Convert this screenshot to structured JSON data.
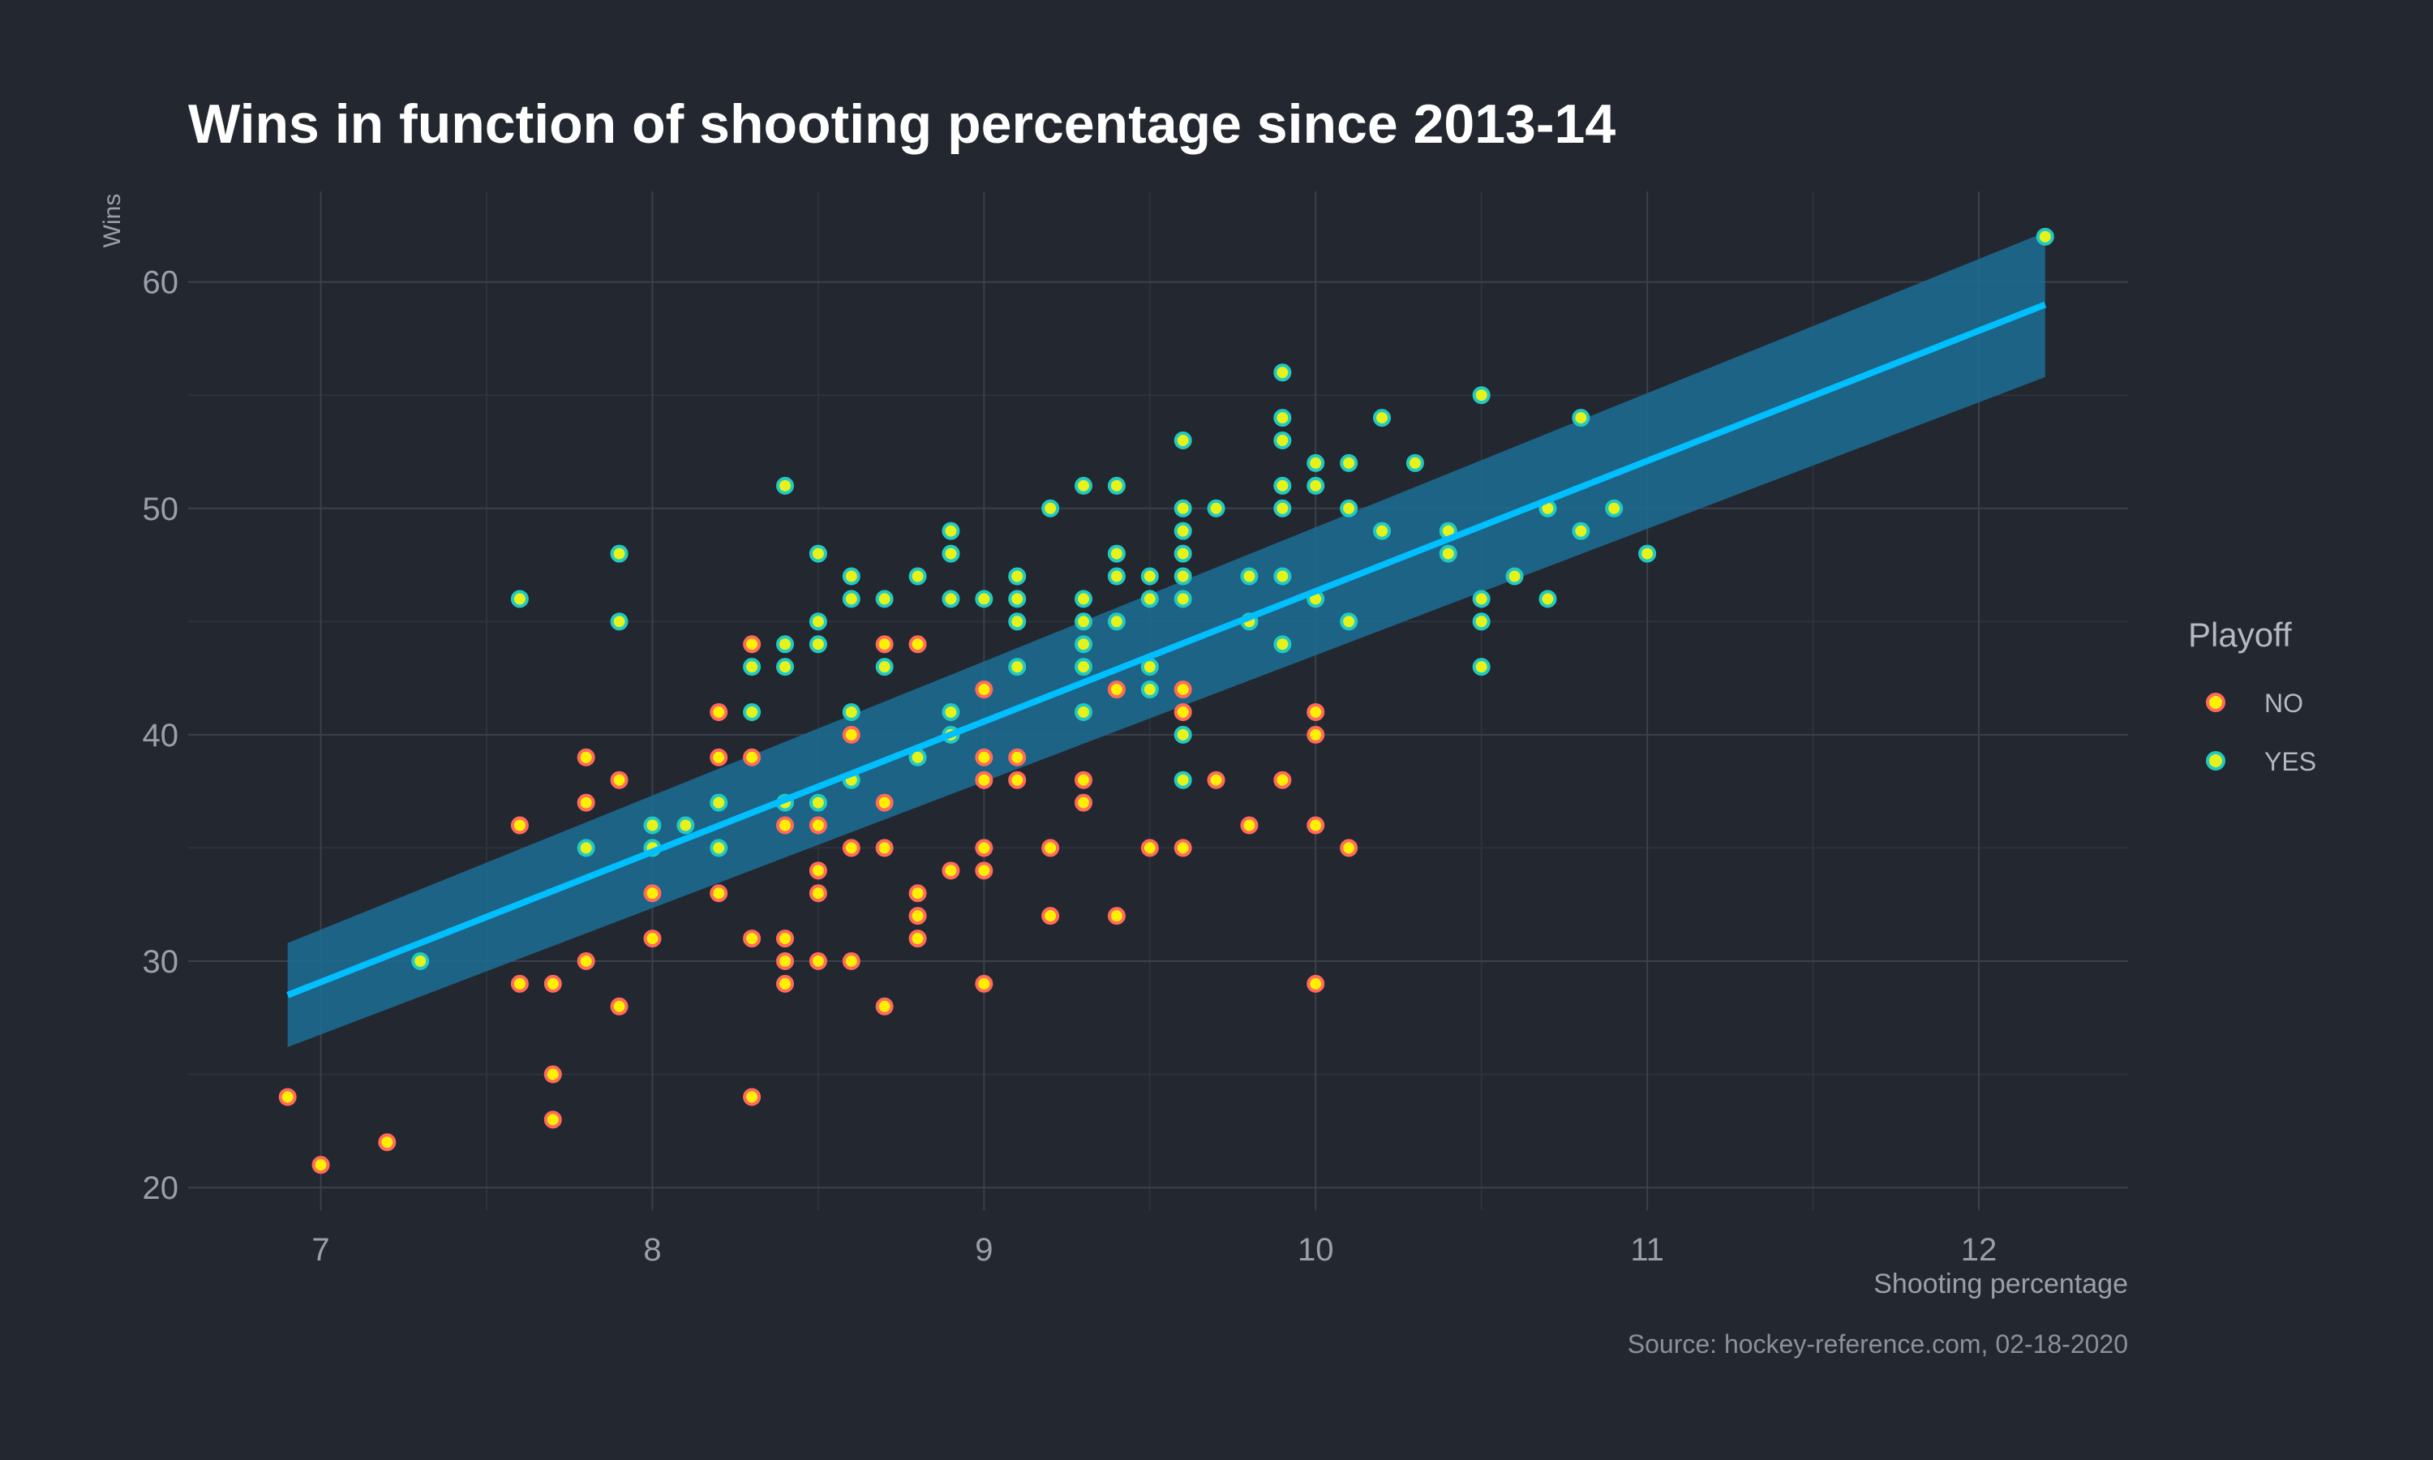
{
  "chart_data": {
    "type": "scatter",
    "title": "Wins in function of shooting percentage since 2013-14",
    "xlabel": "Shooting percentage",
    "ylabel": "Wins",
    "caption": "Source: hockey-reference.com, 02-18-2020",
    "xlim": [
      6.6,
      12.45
    ],
    "ylim": [
      19,
      64
    ],
    "x_ticks": [
      7,
      8,
      9,
      10,
      11,
      12
    ],
    "y_ticks": [
      20,
      30,
      40,
      50,
      60
    ],
    "grid": true,
    "legend": {
      "title": "Playoff",
      "position": "right",
      "entries": [
        "NO",
        "YES"
      ]
    },
    "colors": {
      "background": "#232730",
      "grid_major": "#3b404b",
      "grid_minor": "#2e323c",
      "no_fill": "#ffef00",
      "no_stroke": "#ff6a5c",
      "yes_fill": "#e6f21a",
      "yes_stroke": "#22c9c2",
      "trend_line": "#00bfff",
      "ci_band": "#1b6e94"
    },
    "trend": {
      "x": [
        6.9,
        12.2
      ],
      "y": [
        28.5,
        59.0
      ],
      "ci_lower": [
        26.2,
        55.8
      ],
      "ci_upper": [
        30.8,
        62.2
      ]
    },
    "series": [
      {
        "name": "NO",
        "points": [
          [
            6.9,
            24
          ],
          [
            7.0,
            21
          ],
          [
            7.2,
            22
          ],
          [
            7.6,
            36
          ],
          [
            7.6,
            29
          ],
          [
            7.7,
            29
          ],
          [
            7.7,
            25
          ],
          [
            7.7,
            23
          ],
          [
            7.8,
            39
          ],
          [
            7.8,
            37
          ],
          [
            7.8,
            30
          ],
          [
            7.9,
            38
          ],
          [
            7.9,
            28
          ],
          [
            8.0,
            33
          ],
          [
            8.0,
            31
          ],
          [
            8.2,
            41
          ],
          [
            8.2,
            39
          ],
          [
            8.2,
            33
          ],
          [
            8.3,
            44
          ],
          [
            8.3,
            39
          ],
          [
            8.3,
            31
          ],
          [
            8.3,
            24
          ],
          [
            8.4,
            36
          ],
          [
            8.4,
            31
          ],
          [
            8.4,
            30
          ],
          [
            8.4,
            29
          ],
          [
            8.5,
            36
          ],
          [
            8.5,
            34
          ],
          [
            8.5,
            33
          ],
          [
            8.5,
            30
          ],
          [
            8.6,
            40
          ],
          [
            8.6,
            35
          ],
          [
            8.6,
            30
          ],
          [
            8.7,
            44
          ],
          [
            8.7,
            37
          ],
          [
            8.7,
            35
          ],
          [
            8.7,
            28
          ],
          [
            8.8,
            44
          ],
          [
            8.8,
            33
          ],
          [
            8.8,
            32
          ],
          [
            8.8,
            31
          ],
          [
            8.9,
            34
          ],
          [
            9.0,
            42
          ],
          [
            9.0,
            39
          ],
          [
            9.0,
            38
          ],
          [
            9.0,
            35
          ],
          [
            9.0,
            34
          ],
          [
            9.0,
            29
          ],
          [
            9.1,
            39
          ],
          [
            9.1,
            38
          ],
          [
            9.2,
            35
          ],
          [
            9.2,
            32
          ],
          [
            9.3,
            38
          ],
          [
            9.3,
            37
          ],
          [
            9.4,
            42
          ],
          [
            9.4,
            32
          ],
          [
            9.5,
            35
          ],
          [
            9.6,
            42
          ],
          [
            9.6,
            41
          ],
          [
            9.6,
            35
          ],
          [
            9.7,
            38
          ],
          [
            9.8,
            36
          ],
          [
            9.9,
            38
          ],
          [
            10.0,
            41
          ],
          [
            10.0,
            40
          ],
          [
            10.0,
            36
          ],
          [
            10.0,
            29
          ],
          [
            10.1,
            35
          ]
        ]
      },
      {
        "name": "YES",
        "points": [
          [
            7.3,
            30
          ],
          [
            7.6,
            46
          ],
          [
            7.8,
            35
          ],
          [
            7.9,
            48
          ],
          [
            7.9,
            45
          ],
          [
            8.0,
            36
          ],
          [
            8.0,
            35
          ],
          [
            8.1,
            36
          ],
          [
            8.2,
            37
          ],
          [
            8.2,
            35
          ],
          [
            8.3,
            43
          ],
          [
            8.3,
            41
          ],
          [
            8.4,
            51
          ],
          [
            8.4,
            44
          ],
          [
            8.4,
            43
          ],
          [
            8.4,
            37
          ],
          [
            8.5,
            48
          ],
          [
            8.5,
            45
          ],
          [
            8.5,
            44
          ],
          [
            8.5,
            37
          ],
          [
            8.6,
            47
          ],
          [
            8.6,
            46
          ],
          [
            8.6,
            41
          ],
          [
            8.6,
            38
          ],
          [
            8.7,
            46
          ],
          [
            8.7,
            43
          ],
          [
            8.8,
            47
          ],
          [
            8.8,
            39
          ],
          [
            8.9,
            49
          ],
          [
            8.9,
            48
          ],
          [
            8.9,
            46
          ],
          [
            8.9,
            41
          ],
          [
            8.9,
            40
          ],
          [
            9.0,
            46
          ],
          [
            9.1,
            47
          ],
          [
            9.1,
            46
          ],
          [
            9.1,
            45
          ],
          [
            9.1,
            43
          ],
          [
            9.2,
            50
          ],
          [
            9.3,
            51
          ],
          [
            9.3,
            46
          ],
          [
            9.3,
            45
          ],
          [
            9.3,
            44
          ],
          [
            9.3,
            43
          ],
          [
            9.3,
            41
          ],
          [
            9.4,
            51
          ],
          [
            9.4,
            48
          ],
          [
            9.4,
            47
          ],
          [
            9.4,
            45
          ],
          [
            9.5,
            47
          ],
          [
            9.5,
            46
          ],
          [
            9.5,
            43
          ],
          [
            9.5,
            42
          ],
          [
            9.6,
            53
          ],
          [
            9.6,
            50
          ],
          [
            9.6,
            49
          ],
          [
            9.6,
            48
          ],
          [
            9.6,
            47
          ],
          [
            9.6,
            46
          ],
          [
            9.6,
            40
          ],
          [
            9.6,
            38
          ],
          [
            9.7,
            50
          ],
          [
            9.8,
            47
          ],
          [
            9.8,
            45
          ],
          [
            9.9,
            56
          ],
          [
            9.9,
            54
          ],
          [
            9.9,
            53
          ],
          [
            9.9,
            51
          ],
          [
            9.9,
            50
          ],
          [
            9.9,
            47
          ],
          [
            9.9,
            44
          ],
          [
            10.0,
            52
          ],
          [
            10.0,
            51
          ],
          [
            10.0,
            46
          ],
          [
            10.1,
            52
          ],
          [
            10.1,
            50
          ],
          [
            10.1,
            45
          ],
          [
            10.2,
            54
          ],
          [
            10.2,
            49
          ],
          [
            10.3,
            52
          ],
          [
            10.4,
            49
          ],
          [
            10.4,
            48
          ],
          [
            10.5,
            55
          ],
          [
            10.5,
            46
          ],
          [
            10.5,
            45
          ],
          [
            10.5,
            43
          ],
          [
            10.6,
            47
          ],
          [
            10.7,
            50
          ],
          [
            10.7,
            46
          ],
          [
            10.8,
            54
          ],
          [
            10.8,
            49
          ],
          [
            10.9,
            50
          ],
          [
            11.0,
            48
          ],
          [
            12.2,
            62
          ]
        ]
      }
    ]
  }
}
